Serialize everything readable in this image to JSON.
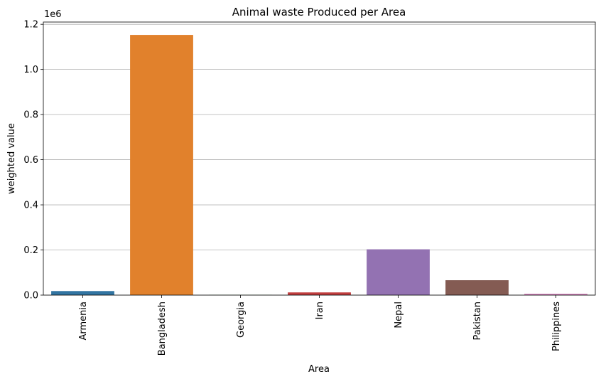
{
  "chart_data": {
    "type": "bar",
    "title": "Animal waste Produced per Area",
    "xlabel": "Area",
    "ylabel": "weighted value",
    "y_offset_label": "1e6",
    "y_scale_factor": 1000000,
    "categories": [
      "Armenia",
      "Bangladesh",
      "Georgia",
      "Iran",
      "Nepal",
      "Pakistan",
      "Philippines"
    ],
    "values": [
      18000,
      1153000,
      1000,
      12000,
      203000,
      66000,
      6000
    ],
    "colors": [
      "#3274a1",
      "#e1812c",
      "#3a923a",
      "#c03d3e",
      "#9372b2",
      "#845b53",
      "#d684bd"
    ],
    "ylim": [
      0,
      1210000
    ],
    "y_ticks": [
      0,
      200000,
      400000,
      600000,
      800000,
      1000000,
      1200000
    ],
    "y_tick_labels": [
      "0.0",
      "0.2",
      "0.4",
      "0.6",
      "0.8",
      "1.0",
      "1.2"
    ],
    "grid": "y-major",
    "legend": "none"
  }
}
